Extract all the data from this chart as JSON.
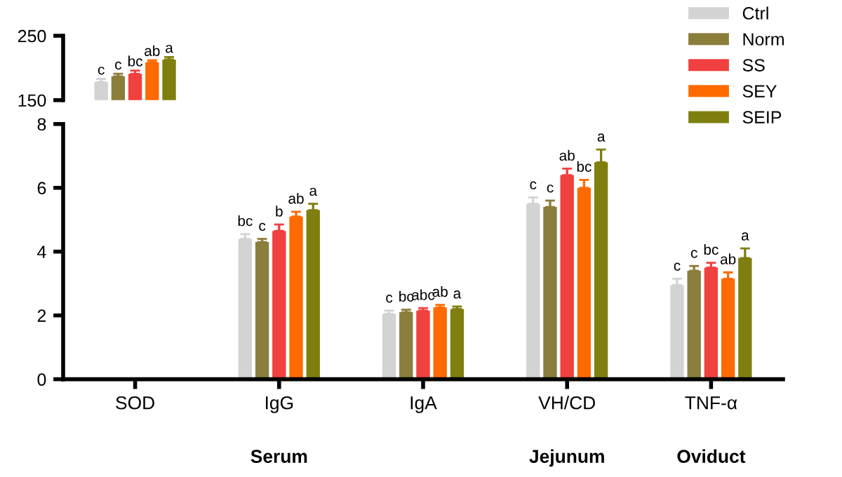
{
  "chart_data": [
    {
      "type": "bar",
      "categories": [
        null
      ],
      "ylim": [
        150,
        250
      ],
      "yticks": [
        150,
        250
      ],
      "tick_labels": "y",
      "legend": "right",
      "grid": false,
      "series": [
        {
          "name": "Ctrl",
          "color": "#d3d3d3",
          "values": [
            178
          ],
          "errors": [
            5
          ],
          "value_labels": [
            "c"
          ]
        },
        {
          "name": "Norm",
          "color": "#8b7d3a",
          "values": [
            187
          ],
          "errors": [
            4
          ],
          "value_labels": [
            "c"
          ]
        },
        {
          "name": "SS",
          "color": "#f04040",
          "values": [
            191
          ],
          "errors": [
            5
          ],
          "value_labels": [
            "bc"
          ]
        },
        {
          "name": "SEY",
          "color": "#ff6a00",
          "values": [
            209
          ],
          "errors": [
            3
          ],
          "value_labels": [
            "ab"
          ]
        },
        {
          "name": "SEIP",
          "color": "#7f7f10",
          "values": [
            213
          ],
          "errors": [
            4
          ],
          "value_labels": [
            "a"
          ]
        }
      ]
    },
    {
      "type": "bar",
      "categories": [
        "SOD",
        "IgG",
        "IgA",
        "VH/CD",
        "TNF-α"
      ],
      "ylim": [
        0,
        8
      ],
      "yticks": [
        0,
        2,
        4,
        6,
        8
      ],
      "grid": false,
      "annotations": [
        "Serum",
        "Jejunum",
        "Oviduct"
      ],
      "series": [
        {
          "color": "#d3d3d3",
          "values": [
            null,
            4.4,
            2.05,
            5.5,
            2.95
          ],
          "errors": [
            null,
            0.15,
            0.1,
            0.2,
            0.2
          ],
          "value_labels": [
            null,
            "bc",
            "c",
            "c",
            "c"
          ]
        },
        {
          "color": "#8b7d3a",
          "values": [
            null,
            4.3,
            2.1,
            5.4,
            3.4
          ],
          "errors": [
            null,
            0.1,
            0.08,
            0.2,
            0.15
          ],
          "value_labels": [
            null,
            "c",
            "bc",
            "c",
            "c"
          ]
        },
        {
          "color": "#f04040",
          "values": [
            null,
            4.65,
            2.15,
            6.4,
            3.5
          ],
          "errors": [
            null,
            0.2,
            0.08,
            0.2,
            0.15
          ],
          "value_labels": [
            null,
            "b",
            "abc",
            "ab",
            "bc"
          ]
        },
        {
          "color": "#ff6a00",
          "values": [
            null,
            5.1,
            2.25,
            6.0,
            3.15
          ],
          "errors": [
            null,
            0.15,
            0.08,
            0.25,
            0.2
          ],
          "value_labels": [
            null,
            "ab",
            "ab",
            "bc",
            "ab"
          ]
        },
        {
          "color": "#7f7f10",
          "values": [
            null,
            5.3,
            2.2,
            6.8,
            3.8
          ],
          "errors": [
            null,
            0.2,
            0.08,
            0.4,
            0.3
          ],
          "value_labels": [
            null,
            "a",
            "a",
            "a",
            "a"
          ]
        }
      ]
    }
  ]
}
